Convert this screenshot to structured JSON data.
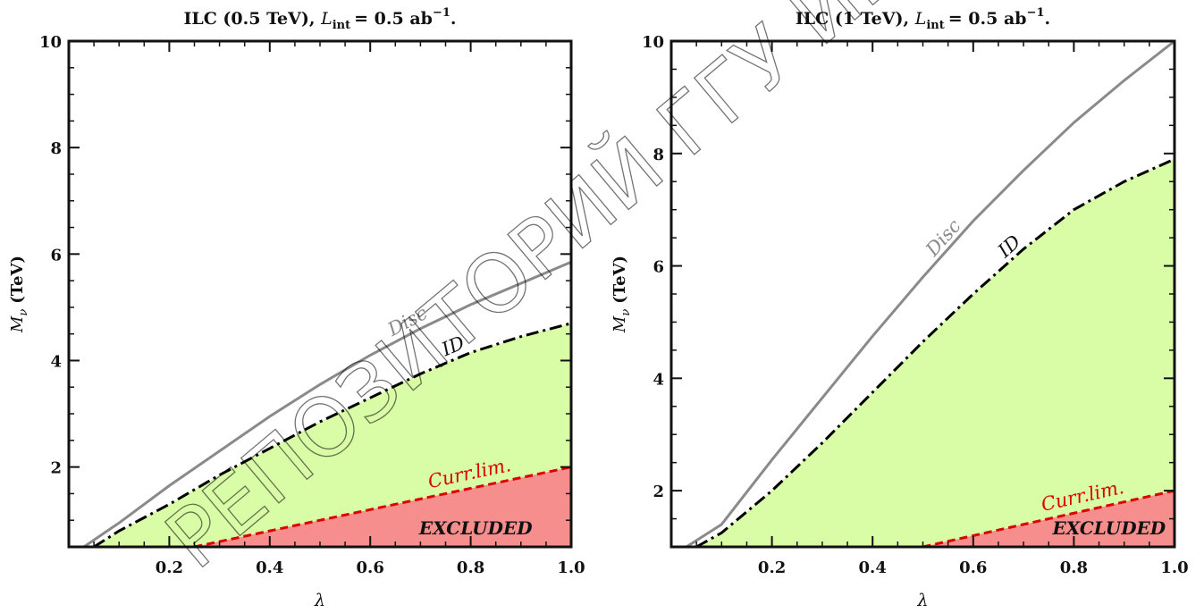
{
  "watermark": "РЕПОЗИТОРИЙ ГГУ ИМЕНИ Ф.",
  "chart_data": [
    {
      "type": "area",
      "title_prefix": "ILC (0.5 TeV),",
      "title_lumi": "L",
      "title_lumi_sub": "int",
      "title_suffix": "= 0.5 ab",
      "title_exp": "−1",
      "title_end": ".",
      "xlabel": "λ",
      "ylabel_main": "M",
      "ylabel_sub": "ν",
      "ylabel_unit": "(TeV)",
      "xlim": [
        0,
        1.0
      ],
      "ylim": [
        0.5,
        10
      ],
      "xticks": [
        "0.2",
        "0.4",
        "0.6",
        "0.8",
        "1.0"
      ],
      "yticks": [
        "2",
        "4",
        "6",
        "8",
        "10"
      ],
      "series": [
        {
          "label": "Disc",
          "color": "#8a8a8a",
          "style": "solid",
          "x": [
            0.03,
            0.1,
            0.2,
            0.3,
            0.4,
            0.5,
            0.6,
            0.7,
            0.8,
            0.9,
            1.0
          ],
          "y": [
            0.5,
            0.95,
            1.65,
            2.3,
            2.95,
            3.55,
            4.1,
            4.6,
            5.05,
            5.45,
            5.85
          ]
        },
        {
          "label": "ID",
          "color": "#000000",
          "style": "dashdot",
          "x": [
            0.05,
            0.1,
            0.2,
            0.3,
            0.4,
            0.5,
            0.6,
            0.7,
            0.8,
            0.9,
            1.0
          ],
          "y": [
            0.5,
            0.8,
            1.3,
            1.85,
            2.35,
            2.85,
            3.3,
            3.75,
            4.15,
            4.45,
            4.7
          ]
        },
        {
          "label": "Curr.lim.",
          "color": "#dd0000",
          "style": "dashed",
          "x": [
            0.25,
            0.4,
            0.6,
            0.8,
            1.0
          ],
          "y": [
            0.5,
            0.8,
            1.2,
            1.6,
            2.0
          ]
        }
      ],
      "region_labels": [
        "EXCLUDED"
      ],
      "fill_colors": {
        "allowed": "#d9fca6",
        "excluded": "#f78e8e"
      }
    },
    {
      "type": "area",
      "title_prefix": "ILC (1 TeV),",
      "title_lumi": "L",
      "title_lumi_sub": "int",
      "title_suffix": "= 0.5 ab",
      "title_exp": "−1",
      "title_end": ".",
      "xlabel": "λ",
      "ylabel_main": "M",
      "ylabel_sub": "ν",
      "ylabel_unit": "(TeV)",
      "xlim": [
        0,
        1.0
      ],
      "ylim": [
        1,
        10
      ],
      "xticks": [
        "0.2",
        "0.4",
        "0.6",
        "0.8",
        "1.0"
      ],
      "yticks": [
        "2",
        "4",
        "6",
        "8",
        "10"
      ],
      "series": [
        {
          "label": "Disc",
          "color": "#8a8a8a",
          "style": "solid",
          "x": [
            0.03,
            0.1,
            0.2,
            0.3,
            0.4,
            0.5,
            0.6,
            0.7,
            0.8,
            0.9,
            1.0
          ],
          "y": [
            1.0,
            1.4,
            2.55,
            3.65,
            4.75,
            5.8,
            6.8,
            7.7,
            8.55,
            9.3,
            10.0
          ]
        },
        {
          "label": "ID",
          "color": "#000000",
          "style": "dashdot",
          "x": [
            0.05,
            0.1,
            0.2,
            0.3,
            0.4,
            0.5,
            0.6,
            0.7,
            0.8,
            0.9,
            1.0
          ],
          "y": [
            1.0,
            1.25,
            2.0,
            2.85,
            3.75,
            4.65,
            5.5,
            6.3,
            7.0,
            7.5,
            7.9
          ]
        },
        {
          "label": "Curr.lim.",
          "color": "#dd0000",
          "style": "dashed",
          "x": [
            0.5,
            0.75,
            1.0
          ],
          "y": [
            1.0,
            1.5,
            2.0
          ]
        }
      ],
      "region_labels": [
        "EXCLUDED"
      ],
      "fill_colors": {
        "allowed": "#d9fca6",
        "excluded": "#f78e8e"
      }
    }
  ]
}
